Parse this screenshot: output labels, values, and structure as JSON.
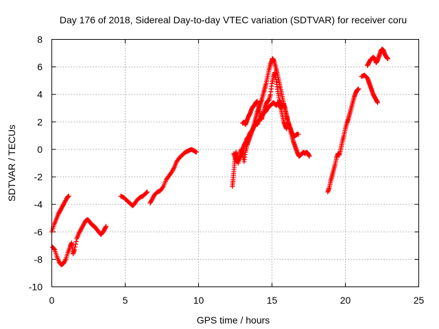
{
  "chart_data": {
    "type": "scatter",
    "title": "Day 176 of 2018, Sidereal Day-to-day VTEC variation (SDTVAR) for receiver coru",
    "xlabel": "GPS time / hours",
    "ylabel": "SDTVAR / TECUs",
    "xlim": [
      0,
      25
    ],
    "ylim": [
      -10,
      8
    ],
    "xticks": [
      0,
      5,
      10,
      15,
      20,
      25
    ],
    "yticks": [
      -10,
      -8,
      -6,
      -4,
      -2,
      0,
      2,
      4,
      6,
      8
    ],
    "grid": true,
    "marker": "+",
    "color": "#ff0000",
    "series": [
      {
        "name": "segment-1",
        "points": [
          [
            0.0,
            -6.0
          ],
          [
            0.15,
            -5.5
          ],
          [
            0.3,
            -5.1
          ],
          [
            0.45,
            -4.7
          ],
          [
            0.6,
            -4.4
          ],
          [
            0.75,
            -4.1
          ],
          [
            0.9,
            -3.8
          ],
          [
            1.05,
            -3.5
          ],
          [
            1.15,
            -3.4
          ]
        ]
      },
      {
        "name": "segment-2",
        "points": [
          [
            0.05,
            -7.1
          ],
          [
            0.2,
            -7.3
          ],
          [
            0.35,
            -7.8
          ],
          [
            0.5,
            -8.2
          ],
          [
            0.65,
            -8.4
          ],
          [
            0.8,
            -8.3
          ],
          [
            0.95,
            -8.0
          ],
          [
            1.1,
            -7.5
          ],
          [
            1.25,
            -7.1
          ],
          [
            1.35,
            -6.8
          ],
          [
            1.45,
            -7.6
          ],
          [
            1.55,
            -7.3
          ],
          [
            1.7,
            -6.5
          ],
          [
            1.85,
            -6.1
          ],
          [
            2.0,
            -5.8
          ],
          [
            2.15,
            -5.5
          ],
          [
            2.3,
            -5.2
          ],
          [
            2.45,
            -5.1
          ],
          [
            2.6,
            -5.3
          ],
          [
            2.75,
            -5.5
          ],
          [
            2.9,
            -5.6
          ],
          [
            3.05,
            -5.8
          ],
          [
            3.2,
            -6.0
          ],
          [
            3.35,
            -6.2
          ],
          [
            3.5,
            -6.0
          ],
          [
            3.6,
            -5.8
          ],
          [
            3.7,
            -5.6
          ]
        ]
      },
      {
        "name": "segment-3",
        "points": [
          [
            4.7,
            -3.4
          ],
          [
            4.9,
            -3.5
          ],
          [
            5.1,
            -3.7
          ],
          [
            5.3,
            -3.9
          ],
          [
            5.5,
            -4.1
          ],
          [
            5.6,
            -4.0
          ],
          [
            5.8,
            -3.7
          ],
          [
            6.0,
            -3.5
          ],
          [
            6.2,
            -3.4
          ],
          [
            6.4,
            -3.2
          ],
          [
            6.5,
            -3.1
          ]
        ]
      },
      {
        "name": "segment-4",
        "points": [
          [
            6.7,
            -3.9
          ],
          [
            6.85,
            -3.6
          ],
          [
            7.0,
            -3.3
          ],
          [
            7.2,
            -3.1
          ],
          [
            7.4,
            -3.0
          ],
          [
            7.6,
            -2.7
          ],
          [
            7.8,
            -2.2
          ],
          [
            8.0,
            -1.9
          ],
          [
            8.2,
            -1.6
          ],
          [
            8.35,
            -1.3
          ],
          [
            8.5,
            -0.9
          ],
          [
            8.7,
            -0.6
          ],
          [
            8.9,
            -0.4
          ],
          [
            9.1,
            -0.2
          ],
          [
            9.3,
            -0.1
          ],
          [
            9.5,
            0.0
          ],
          [
            9.7,
            -0.1
          ],
          [
            9.85,
            -0.2
          ]
        ]
      },
      {
        "name": "segment-5",
        "points": [
          [
            12.3,
            -2.7
          ],
          [
            12.35,
            -2.2
          ],
          [
            12.4,
            -1.6
          ],
          [
            12.45,
            -1.0
          ],
          [
            12.5,
            -0.5
          ],
          [
            12.55,
            -0.2
          ],
          [
            12.6,
            -0.6
          ],
          [
            12.7,
            -1.0
          ],
          [
            12.8,
            -0.4
          ],
          [
            12.9,
            0.0
          ],
          [
            13.0,
            -0.3
          ],
          [
            13.1,
            -0.9
          ],
          [
            13.2,
            -0.2
          ],
          [
            13.3,
            0.3
          ],
          [
            13.4,
            0.6
          ],
          [
            13.5,
            0.9
          ],
          [
            13.6,
            1.2
          ],
          [
            13.7,
            1.5
          ],
          [
            13.8,
            1.9
          ],
          [
            13.9,
            2.3
          ],
          [
            14.0,
            2.7
          ],
          [
            14.1,
            3.0
          ],
          [
            14.2,
            3.3
          ],
          [
            14.3,
            3.6
          ],
          [
            14.4,
            4.0
          ],
          [
            14.5,
            4.4
          ],
          [
            14.6,
            4.8
          ],
          [
            14.7,
            5.3
          ],
          [
            14.8,
            5.8
          ],
          [
            14.9,
            6.2
          ],
          [
            15.0,
            6.5
          ],
          [
            15.05,
            6.6
          ],
          [
            15.15,
            6.4
          ],
          [
            15.25,
            6.0
          ],
          [
            15.35,
            5.6
          ],
          [
            15.45,
            5.1
          ],
          [
            15.55,
            4.6
          ],
          [
            15.65,
            4.1
          ],
          [
            15.75,
            3.6
          ],
          [
            15.85,
            3.1
          ],
          [
            15.95,
            2.6
          ],
          [
            16.05,
            2.2
          ],
          [
            16.15,
            1.8
          ],
          [
            16.25,
            1.4
          ],
          [
            16.35,
            1.0
          ],
          [
            16.45,
            0.6
          ],
          [
            16.55,
            0.3
          ],
          [
            16.65,
            0.0
          ],
          [
            16.75,
            -0.3
          ],
          [
            16.85,
            -0.5
          ],
          [
            16.95,
            -0.4
          ],
          [
            17.05,
            -0.3
          ],
          [
            17.15,
            -0.2
          ],
          [
            17.25,
            -0.3
          ],
          [
            17.35,
            -0.2
          ],
          [
            17.45,
            -0.3
          ],
          [
            17.55,
            -0.5
          ]
        ]
      },
      {
        "name": "segment-6",
        "points": [
          [
            13.0,
            1.9
          ],
          [
            13.1,
            2.0
          ],
          [
            13.2,
            1.8
          ],
          [
            13.3,
            2.1
          ],
          [
            13.4,
            2.4
          ],
          [
            13.5,
            2.6
          ],
          [
            13.6,
            2.9
          ],
          [
            13.7,
            3.1
          ],
          [
            13.8,
            3.2
          ],
          [
            13.9,
            3.4
          ],
          [
            14.0,
            3.5
          ],
          [
            14.1,
            3.0
          ],
          [
            14.2,
            2.5
          ],
          [
            14.3,
            2.2
          ],
          [
            14.4,
            2.6
          ],
          [
            14.5,
            3.0
          ],
          [
            14.6,
            3.3
          ],
          [
            14.7,
            3.5
          ],
          [
            14.8,
            3.6
          ],
          [
            14.9,
            4.0
          ],
          [
            15.0,
            4.8
          ],
          [
            15.1,
            5.3
          ],
          [
            15.2,
            5.6
          ],
          [
            15.3,
            4.9
          ],
          [
            15.4,
            4.2
          ],
          [
            15.5,
            3.6
          ],
          [
            15.6,
            3.3
          ],
          [
            15.7,
            3.1
          ],
          [
            15.8,
            3.3
          ],
          [
            15.9,
            3.0
          ],
          [
            16.0,
            2.5
          ],
          [
            16.1,
            2.0
          ],
          [
            16.2,
            1.7
          ],
          [
            16.3,
            1.4
          ],
          [
            16.4,
            1.1
          ],
          [
            16.5,
            1.0
          ],
          [
            16.6,
            1.0
          ],
          [
            16.7,
            1.1
          ],
          [
            16.8,
            1.1
          ]
        ]
      },
      {
        "name": "segment-7",
        "points": [
          [
            12.4,
            -0.3
          ],
          [
            12.5,
            -0.6
          ],
          [
            12.6,
            -0.9
          ],
          [
            12.7,
            -0.8
          ],
          [
            12.8,
            -0.6
          ],
          [
            12.9,
            -0.4
          ],
          [
            13.0,
            0.0
          ],
          [
            13.1,
            0.3
          ],
          [
            13.2,
            0.5
          ],
          [
            13.3,
            0.8
          ],
          [
            13.4,
            0.9
          ],
          [
            13.5,
            1.2
          ],
          [
            13.6,
            1.3
          ],
          [
            13.7,
            1.5
          ],
          [
            13.8,
            1.7
          ],
          [
            13.9,
            1.9
          ],
          [
            14.0,
            1.8
          ],
          [
            14.1,
            2.1
          ],
          [
            14.2,
            2.2
          ],
          [
            14.3,
            2.4
          ],
          [
            14.4,
            2.6
          ],
          [
            14.5,
            2.7
          ],
          [
            14.6,
            2.8
          ],
          [
            14.7,
            3.0
          ],
          [
            14.8,
            3.1
          ],
          [
            14.9,
            3.2
          ],
          [
            15.0,
            3.3
          ],
          [
            15.1,
            3.4
          ],
          [
            15.2,
            3.3
          ],
          [
            15.3,
            3.2
          ],
          [
            15.4,
            3.4
          ],
          [
            15.5,
            3.2
          ],
          [
            15.6,
            3.0
          ],
          [
            15.7,
            2.5
          ],
          [
            15.8,
            2.0
          ],
          [
            15.9,
            1.7
          ],
          [
            16.0,
            1.5
          ]
        ]
      },
      {
        "name": "segment-8",
        "points": [
          [
            18.8,
            -3.1
          ],
          [
            18.9,
            -2.8
          ],
          [
            19.0,
            -2.3
          ],
          [
            19.1,
            -1.9
          ],
          [
            19.2,
            -1.5
          ],
          [
            19.3,
            -1.1
          ],
          [
            19.4,
            -0.6
          ],
          [
            19.5,
            -0.3
          ],
          [
            19.6,
            -0.4
          ],
          [
            19.7,
            0.1
          ],
          [
            19.8,
            0.6
          ],
          [
            19.9,
            1.0
          ],
          [
            20.0,
            1.5
          ],
          [
            20.1,
            1.9
          ],
          [
            20.2,
            2.2
          ],
          [
            20.3,
            2.6
          ],
          [
            20.4,
            3.0
          ],
          [
            20.5,
            3.4
          ],
          [
            20.6,
            3.8
          ],
          [
            20.7,
            4.1
          ],
          [
            20.8,
            4.3
          ],
          [
            20.9,
            4.4
          ]
        ]
      },
      {
        "name": "segment-9",
        "points": [
          [
            21.1,
            5.3
          ],
          [
            21.3,
            5.4
          ],
          [
            21.5,
            5.2
          ],
          [
            21.6,
            4.9
          ],
          [
            21.7,
            4.6
          ],
          [
            21.8,
            4.3
          ],
          [
            21.9,
            4.0
          ],
          [
            22.0,
            3.8
          ],
          [
            22.1,
            3.6
          ],
          [
            22.2,
            3.4
          ]
        ]
      },
      {
        "name": "segment-10",
        "points": [
          [
            21.5,
            6.1
          ],
          [
            21.6,
            6.3
          ],
          [
            21.7,
            6.5
          ],
          [
            21.8,
            6.6
          ],
          [
            21.9,
            6.7
          ],
          [
            22.0,
            6.6
          ],
          [
            22.1,
            6.3
          ],
          [
            22.2,
            6.5
          ],
          [
            22.3,
            6.8
          ],
          [
            22.4,
            7.1
          ],
          [
            22.5,
            7.3
          ],
          [
            22.6,
            7.2
          ],
          [
            22.7,
            6.9
          ],
          [
            22.8,
            6.7
          ],
          [
            22.9,
            6.6
          ]
        ]
      }
    ]
  }
}
